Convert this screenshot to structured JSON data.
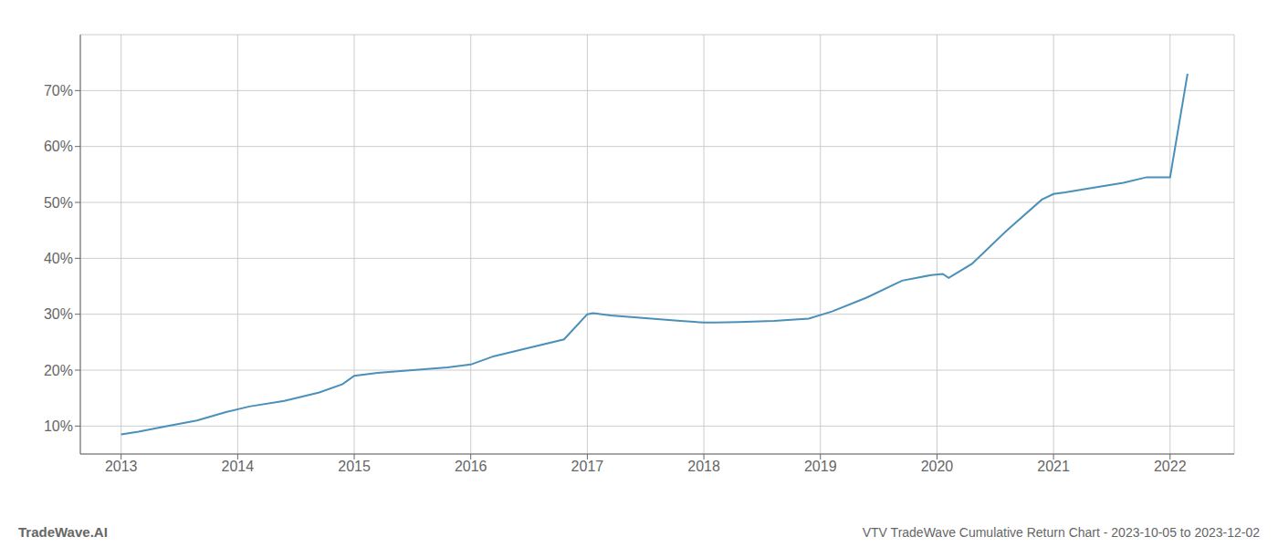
{
  "chart_data": {
    "type": "line",
    "title": "VTV TradeWave Cumulative Return Chart - 2023-10-05 to 2023-12-02",
    "annotations": [
      "TradeWave.AI"
    ],
    "x": [
      2013.0,
      2013.15,
      2013.4,
      2013.65,
      2013.9,
      2014.1,
      2014.4,
      2014.7,
      2014.9,
      2015.0,
      2015.2,
      2015.5,
      2015.8,
      2016.0,
      2016.2,
      2016.5,
      2016.8,
      2017.0,
      2017.05,
      2017.2,
      2017.5,
      2017.8,
      2018.0,
      2018.1,
      2018.3,
      2018.6,
      2018.9,
      2019.1,
      2019.4,
      2019.7,
      2019.95,
      2020.05,
      2020.1,
      2020.3,
      2020.6,
      2020.9,
      2021.0,
      2021.1,
      2021.3,
      2021.6,
      2021.8,
      2022.0,
      2022.15
    ],
    "values": [
      8.5,
      9.0,
      10.0,
      11.0,
      12.5,
      13.5,
      14.5,
      16.0,
      17.5,
      19.0,
      19.5,
      20.0,
      20.5,
      21.0,
      22.5,
      24.0,
      25.5,
      30.0,
      30.2,
      29.8,
      29.3,
      28.8,
      28.5,
      28.5,
      28.6,
      28.8,
      29.2,
      30.5,
      33.0,
      36.0,
      37.0,
      37.2,
      36.5,
      39.0,
      45.0,
      50.5,
      51.5,
      51.8,
      52.5,
      53.5,
      54.5,
      54.5,
      73.0
    ],
    "color": "#4a90b8",
    "xlim": [
      2012.65,
      2022.55
    ],
    "xticks": [
      2013,
      2014,
      2015,
      2016,
      2017,
      2018,
      2019,
      2020,
      2021,
      2022
    ],
    "ylim": [
      5,
      80
    ],
    "yticks": [
      {
        "value": 10,
        "label": "10%"
      },
      {
        "value": 20,
        "label": "20%"
      },
      {
        "value": 30,
        "label": "30%"
      },
      {
        "value": 40,
        "label": "40%"
      },
      {
        "value": 50,
        "label": "50%"
      },
      {
        "value": 60,
        "label": "60%"
      },
      {
        "value": 70,
        "label": "70%"
      }
    ],
    "grid": true
  }
}
